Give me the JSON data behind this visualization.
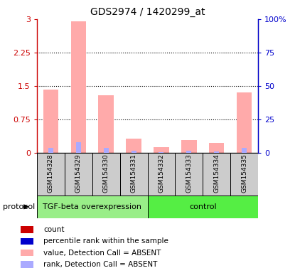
{
  "title": "GDS2974 / 1420299_at",
  "samples": [
    "GSM154328",
    "GSM154329",
    "GSM154330",
    "GSM154331",
    "GSM154332",
    "GSM154333",
    "GSM154334",
    "GSM154335"
  ],
  "groups": [
    "TGF-beta overexpression",
    "TGF-beta overexpression",
    "TGF-beta overexpression",
    "TGF-beta overexpression",
    "control",
    "control",
    "control",
    "control"
  ],
  "group_colors": {
    "TGF-beta overexpression": "#99ee88",
    "control": "#55ee44"
  },
  "pink_bars": [
    1.42,
    2.95,
    1.3,
    0.32,
    0.13,
    0.28,
    0.22,
    1.35
  ],
  "blue_bars_pct": [
    4.0,
    8.0,
    3.5,
    1.5,
    0.8,
    1.5,
    1.2,
    3.5
  ],
  "ylim_left": [
    0,
    3.0
  ],
  "ylim_right": [
    0,
    100
  ],
  "yticks_left": [
    0,
    0.75,
    1.5,
    2.25,
    3.0
  ],
  "ytick_labels_left": [
    "0",
    "0.75",
    "1.5",
    "2.25",
    "3"
  ],
  "yticks_right": [
    0,
    25,
    50,
    75,
    100
  ],
  "ytick_labels_right": [
    "0",
    "25",
    "50",
    "75",
    "100%"
  ],
  "left_axis_color": "#cc0000",
  "right_axis_color": "#0000cc",
  "pink_color": "#ffaaaa",
  "blue_color": "#aaaaff",
  "protocol_label": "protocol",
  "legend_items": [
    {
      "color": "#cc0000",
      "label": "count"
    },
    {
      "color": "#0000cc",
      "label": "percentile rank within the sample"
    },
    {
      "color": "#ffaaaa",
      "label": "value, Detection Call = ABSENT"
    },
    {
      "color": "#aaaaff",
      "label": "rank, Detection Call = ABSENT"
    }
  ],
  "bg_color": "#cccccc",
  "plot_bg": "#ffffff"
}
